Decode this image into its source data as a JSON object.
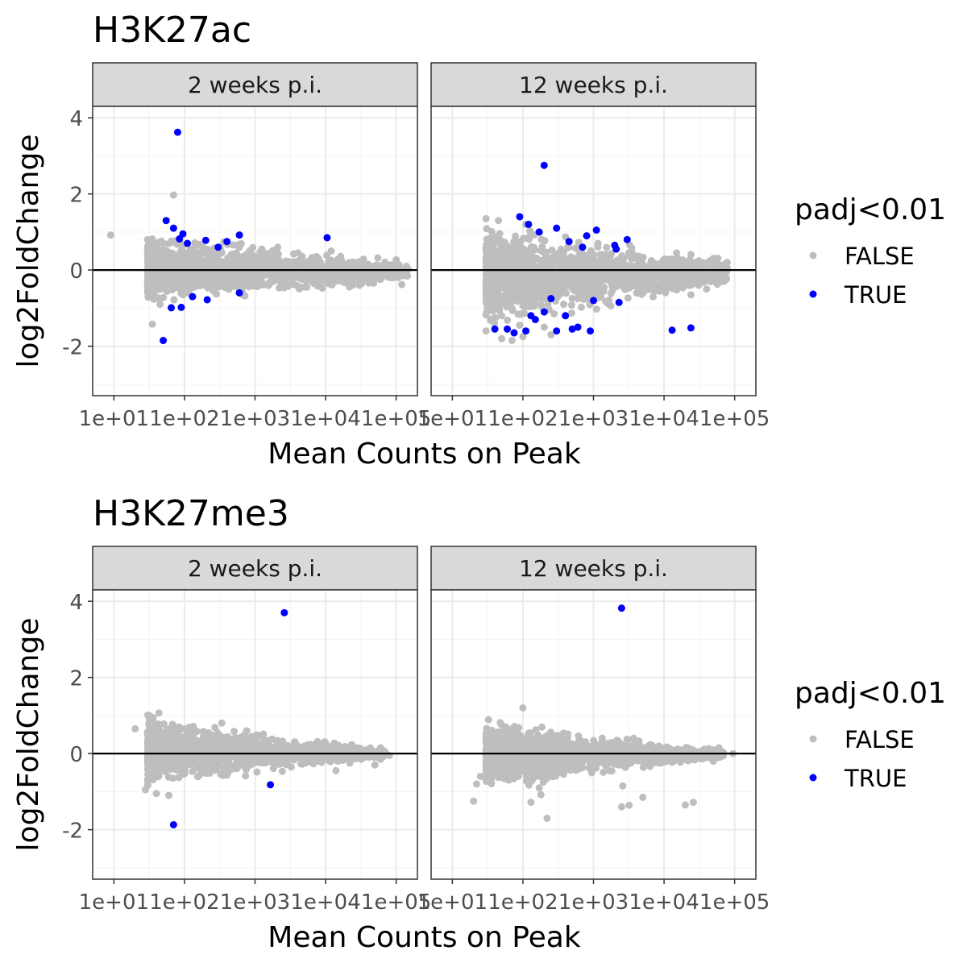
{
  "colors": {
    "false_points": "#BEBEBE",
    "true_points": "#0000FF",
    "strip_fill": "#D9D9D9",
    "grid_major": "#EBEBEB",
    "grid_minor": "#F3F3F3",
    "panel_border": "#333333",
    "zero_line": "#000000"
  },
  "legend": {
    "title": "padj<0.01",
    "items": [
      {
        "label": "FALSE",
        "color": "#BEBEBE"
      },
      {
        "label": "TRUE",
        "color": "#0000FF"
      }
    ]
  },
  "chart_data": [
    {
      "type": "scatter",
      "title": "H3K27ac",
      "xlabel": "Mean Counts on Peak",
      "ylabel": "log2FoldChange",
      "x_scale": "log10",
      "xlim": [
        5,
        200000
      ],
      "ylim": [
        -3.3,
        4.3
      ],
      "x_ticks": [
        10,
        100,
        1000,
        10000,
        100000
      ],
      "x_tick_labels": [
        "1e+01",
        "1e+02",
        "1e+03",
        "1e+04",
        "1e+05"
      ],
      "y_ticks": [
        -2,
        0,
        2,
        4
      ],
      "y_tick_labels": [
        "-2",
        "0",
        "2",
        "4"
      ],
      "grid": true,
      "hline": 0,
      "legend_position": "right",
      "panels": [
        {
          "strip": "2 weeks p.i.",
          "cloud": {
            "x_start": 30,
            "x_end": 150000,
            "y_upper_start": 1.1,
            "y_upper_end": 0.25,
            "y_lower_start": -1.05,
            "y_lower_end": -0.35
          },
          "points_false": [
            [
              9,
              0.92
            ],
            [
              35,
              -1.42
            ],
            [
              70,
              1.97
            ],
            [
              2100,
              0.6
            ],
            [
              12000,
              0.5
            ],
            [
              30000,
              -0.4
            ],
            [
              55000,
              0.32
            ],
            [
              85000,
              -0.1
            ],
            [
              100000,
              0.27
            ],
            [
              120000,
              -0.38
            ],
            [
              40000,
              0.15
            ],
            [
              20000,
              -0.3
            ],
            [
              45,
              -0.9
            ],
            [
              30,
              0.8
            ]
          ],
          "points_true": [
            [
              80,
              3.62
            ],
            [
              55,
              1.3
            ],
            [
              95,
              0.95
            ],
            [
              50,
              -1.85
            ],
            [
              90,
              -0.98
            ],
            [
              85,
              0.82
            ],
            [
              200,
              0.78
            ],
            [
              600,
              0.92
            ],
            [
              210,
              -0.78
            ],
            [
              10500,
              0.85
            ],
            [
              65,
              -0.99
            ],
            [
              400,
              0.75
            ],
            [
              600,
              -0.6
            ],
            [
              130,
              -0.7
            ],
            [
              110,
              0.7
            ],
            [
              300,
              0.6
            ],
            [
              70,
              1.1
            ]
          ]
        },
        {
          "strip": "12 weeks p.i.",
          "cloud": {
            "x_start": 30,
            "x_end": 80000,
            "y_upper_start": 1.4,
            "y_upper_end": 0.35,
            "y_lower_start": -1.75,
            "y_lower_end": -0.45
          },
          "points_false": [
            [
              30,
              1.35
            ],
            [
              45,
              1.3
            ],
            [
              110,
              1.2
            ],
            [
              100,
              -1.75
            ],
            [
              70,
              -1.85
            ],
            [
              50,
              -1.8
            ],
            [
              30,
              -1.6
            ],
            [
              7000,
              -0.7
            ],
            [
              9000,
              -0.35
            ],
            [
              12000,
              -0.4
            ],
            [
              24000,
              -0.65
            ],
            [
              40000,
              -0.5
            ],
            [
              65000,
              -0.3
            ],
            [
              45000,
              0.25
            ],
            [
              50,
              -1.2
            ],
            [
              200,
              -1.5
            ],
            [
              250,
              -1.7
            ],
            [
              90,
              -1.45
            ]
          ],
          "points_true": [
            [
              200,
              2.75
            ],
            [
              90,
              1.4
            ],
            [
              120,
              1.2
            ],
            [
              300,
              1.1
            ],
            [
              1100,
              1.05
            ],
            [
              800,
              0.9
            ],
            [
              2000,
              0.65
            ],
            [
              3000,
              0.8
            ],
            [
              60,
              -1.55
            ],
            [
              40,
              -1.55
            ],
            [
              75,
              -1.65
            ],
            [
              110,
              -1.6
            ],
            [
              150,
              -1.3
            ],
            [
              200,
              -1.1
            ],
            [
              250,
              -0.75
            ],
            [
              400,
              -1.2
            ],
            [
              500,
              -1.55
            ],
            [
              600,
              -1.5
            ],
            [
              1000,
              -0.8
            ],
            [
              2300,
              -0.85
            ],
            [
              900,
              -1.6
            ],
            [
              13000,
              -1.58
            ],
            [
              24000,
              -1.52
            ],
            [
              350000,
              -1.58
            ],
            [
              300,
              -1.6
            ],
            [
              130,
              -1.2
            ],
            [
              170,
              1.0
            ],
            [
              450,
              0.75
            ],
            [
              700,
              0.6
            ],
            [
              2100,
              0.55
            ]
          ]
        }
      ]
    },
    {
      "type": "scatter",
      "title": "H3K27me3",
      "xlabel": "Mean Counts on Peak",
      "ylabel": "log2FoldChange",
      "x_scale": "log10",
      "xlim": [
        5,
        200000
      ],
      "ylim": [
        -3.3,
        4.3
      ],
      "x_ticks": [
        10,
        100,
        1000,
        10000,
        100000
      ],
      "x_tick_labels": [
        "1e+01",
        "1e+02",
        "1e+03",
        "1e+04",
        "1e+05"
      ],
      "y_ticks": [
        -2,
        0,
        2,
        4
      ],
      "y_tick_labels": [
        "-2",
        "0",
        "2",
        "4"
      ],
      "grid": true,
      "hline": 0,
      "legend_position": "right",
      "panels": [
        {
          "strip": "2 weeks p.i.",
          "cloud": {
            "x_start": 30,
            "x_end": 70000,
            "y_upper_start": 1.15,
            "y_upper_end": 0.12,
            "y_lower_start": -1.0,
            "y_lower_end": -0.12
          },
          "points_false": [
            [
              20,
              0.65
            ],
            [
              28,
              -0.95
            ],
            [
              40,
              -1.05
            ],
            [
              60,
              -1.1
            ],
            [
              14000,
              -0.45
            ],
            [
              22000,
              -0.25
            ],
            [
              50000,
              -0.3
            ],
            [
              60000,
              -0.15
            ],
            [
              80000,
              -0.05
            ],
            [
              60000,
              0.15
            ],
            [
              30000,
              0.1
            ]
          ],
          "points_true": [
            [
              2600,
              3.7
            ],
            [
              70,
              -1.87
            ],
            [
              1650,
              -0.82
            ]
          ]
        },
        {
          "strip": "12 weeks p.i.",
          "cloud": {
            "x_start": 30,
            "x_end": 70000,
            "y_upper_start": 1.0,
            "y_upper_end": 0.12,
            "y_lower_start": -1.05,
            "y_lower_end": -0.15
          },
          "points_false": [
            [
              20,
              -1.25
            ],
            [
              25,
              -0.6
            ],
            [
              22,
              -0.8
            ],
            [
              170,
              -0.9
            ],
            [
              180,
              -1.08
            ],
            [
              130,
              -1.28
            ],
            [
              220,
              -1.7
            ],
            [
              2500,
              -1.4
            ],
            [
              3200,
              -1.36
            ],
            [
              5000,
              -1.15
            ],
            [
              20000,
              -1.35
            ],
            [
              26000,
              -1.28
            ],
            [
              2600,
              -0.85
            ],
            [
              1700,
              -0.45
            ],
            [
              50000,
              -0.2
            ],
            [
              60000,
              0.15
            ],
            [
              95000,
              0.0
            ],
            [
              40000,
              0.05
            ],
            [
              100,
              1.2
            ]
          ],
          "points_true": [
            [
              2500,
              3.82
            ]
          ]
        }
      ]
    }
  ]
}
